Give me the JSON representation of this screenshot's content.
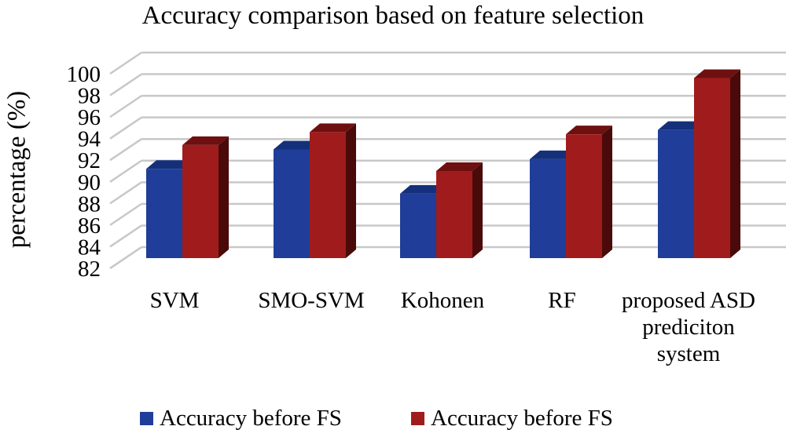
{
  "chart_data": {
    "type": "bar",
    "title": "Accuracy comparison based on feature selection",
    "xlabel": "",
    "ylabel": "percentage (%)",
    "categories": [
      [
        "SVM"
      ],
      [
        "SMO-SVM"
      ],
      [
        "Kohonen"
      ],
      [
        "RF"
      ],
      [
        "proposed ASD",
        "prediciton",
        "system"
      ]
    ],
    "series": [
      {
        "name": "Accuracy before FS",
        "values": [
          91.2,
          93.0,
          88.9,
          92.1,
          94.8
        ],
        "color": "#1f3d99",
        "side": "#0f235e",
        "top": "#15307a"
      },
      {
        "name": "Accuracy before FS",
        "values": [
          93.4,
          94.6,
          91.0,
          94.4,
          99.6
        ],
        "color": "#a01c1c",
        "side": "#4a0a0a",
        "top": "#6e1010"
      }
    ],
    "ylim": [
      82,
      100
    ],
    "yticks": [
      82,
      84,
      86,
      88,
      90,
      92,
      94,
      96,
      98,
      100
    ],
    "grid": true,
    "legend_position": "bottom"
  }
}
